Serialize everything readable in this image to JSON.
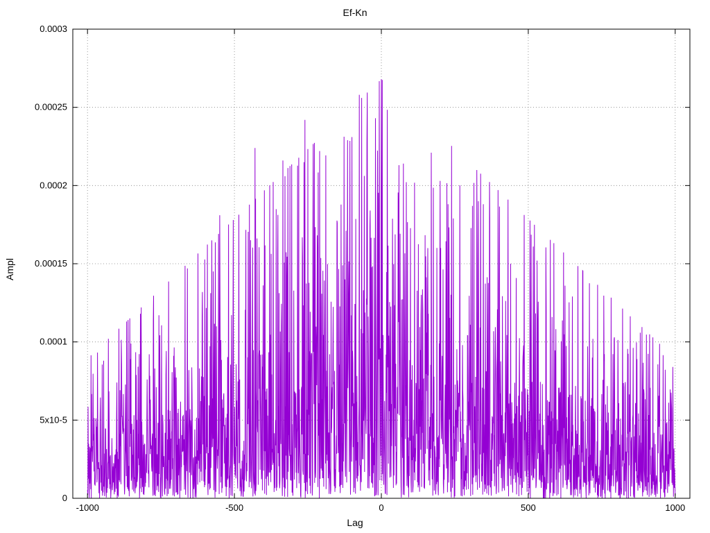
{
  "chart_data": {
    "type": "line",
    "title": "Ef-Kn",
    "xlabel": "Lag",
    "ylabel": "Ampl",
    "xlim": [
      -1050,
      1050
    ],
    "ylim": [
      0,
      0.0003
    ],
    "grid": true,
    "legend": "none",
    "line_color": "#9400d3",
    "grid_color": "#808080",
    "border_color": "#000000",
    "xticks": [
      {
        "value": -1000,
        "label": "-1000"
      },
      {
        "value": -500,
        "label": "-500"
      },
      {
        "value": 0,
        "label": "0"
      },
      {
        "value": 500,
        "label": "500"
      },
      {
        "value": 1000,
        "label": "1000"
      }
    ],
    "yticks": [
      {
        "value": 0,
        "label": "0"
      },
      {
        "value": 5e-05,
        "label": "5x10-5"
      },
      {
        "value": 0.0001,
        "label": "0.0001"
      },
      {
        "value": 0.00015,
        "label": "0.00015"
      },
      {
        "value": 0.0002,
        "label": "0.0002"
      },
      {
        "value": 0.00025,
        "label": "0.00025"
      },
      {
        "value": 0.0003,
        "label": "0.0003"
      }
    ],
    "series_description": "Cross-correlation amplitude vs lag: dense random spikes whose envelope rises roughly triangularly from ~0.00009 at lag ±1000 to a maximum of ~0.000268 at lag 0.",
    "generator": {
      "seed": 911,
      "x_start": -1000,
      "x_end": 1000,
      "n_points": 2001,
      "envelope_peak": 0.000268,
      "envelope_half_width": 1500,
      "noise_mean_fraction": 0.28,
      "forced_peaks": [
        [
          0,
          0.000268
        ],
        [
          -20,
          0.000243
        ],
        [
          -75,
          0.000258
        ],
        [
          -260,
          0.000242
        ],
        [
          -430,
          0.000224
        ],
        [
          -335,
          0.000216
        ],
        [
          -115,
          0.000229
        ],
        [
          -100,
          0.000231
        ],
        [
          60,
          0.000213
        ],
        [
          75,
          0.000214
        ],
        [
          170,
          0.000221
        ],
        [
          200,
          0.000203
        ],
        [
          245,
          0.000179
        ],
        [
          330,
          0.00019
        ],
        [
          310,
          0.000187
        ],
        [
          -550,
          0.000181
        ],
        [
          -660,
          0.000147
        ],
        [
          440,
          0.00015
        ],
        [
          530,
          0.000152
        ],
        [
          650,
          0.000129
        ],
        [
          -820,
          0.000118
        ],
        [
          720,
          0.000102
        ],
        [
          870,
          8.9e-05
        ],
        [
          -945,
          8.8e-05
        ]
      ]
    }
  }
}
